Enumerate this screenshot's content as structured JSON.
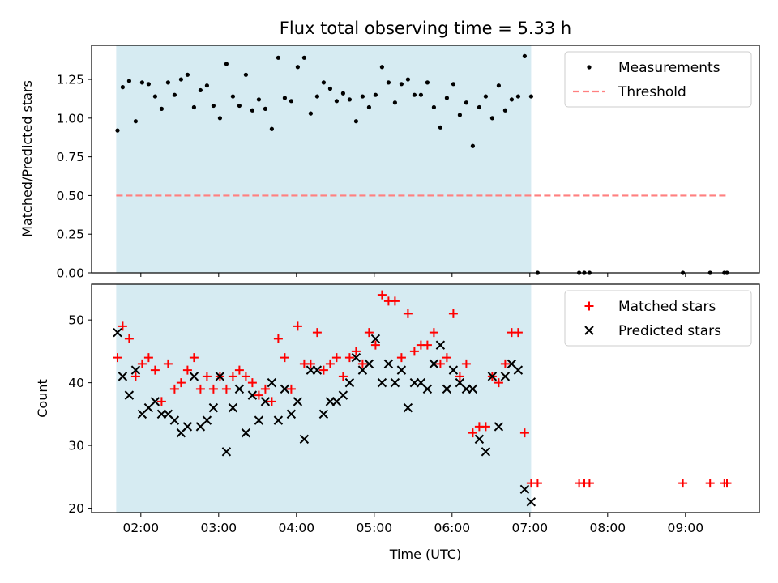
{
  "title": "Flux total observing time = 5.33 h",
  "xlabel": "Time (UTC)",
  "colors": {
    "shade": "#add8e6",
    "measurements": "#000000",
    "threshold": "#ff8080",
    "matched": "#ff0000",
    "predicted": "#000000"
  },
  "chart_data": [
    {
      "type": "scatter",
      "ylabel": "Matched/Predicted stars",
      "xlim": [
        "01:22",
        "09:57"
      ],
      "ylim": [
        0,
        1.47
      ],
      "yticks": [
        "0.00",
        "0.25",
        "0.50",
        "0.75",
        "1.00",
        "1.25"
      ],
      "shaded_span": [
        "01:41",
        "07:01"
      ],
      "legend": [
        "Measurements",
        "Threshold"
      ],
      "legend_position": "top-right",
      "threshold": {
        "name": "Threshold",
        "y": 0.5,
        "x": [
          "01:41",
          "09:32"
        ]
      },
      "series": [
        {
          "name": "Measurements",
          "marker": "dot",
          "points": [
            [
              "01:42",
              0.92
            ],
            [
              "01:46",
              1.2
            ],
            [
              "01:51",
              1.24
            ],
            [
              "01:56",
              0.98
            ],
            [
              "02:01",
              1.23
            ],
            [
              "02:06",
              1.22
            ],
            [
              "02:11",
              1.14
            ],
            [
              "02:16",
              1.06
            ],
            [
              "02:21",
              1.23
            ],
            [
              "02:26",
              1.15
            ],
            [
              "02:31",
              1.25
            ],
            [
              "02:36",
              1.28
            ],
            [
              "02:41",
              1.07
            ],
            [
              "02:46",
              1.18
            ],
            [
              "02:51",
              1.21
            ],
            [
              "02:56",
              1.08
            ],
            [
              "03:01",
              1.0
            ],
            [
              "03:06",
              1.35
            ],
            [
              "03:11",
              1.14
            ],
            [
              "03:16",
              1.08
            ],
            [
              "03:21",
              1.28
            ],
            [
              "03:26",
              1.05
            ],
            [
              "03:31",
              1.12
            ],
            [
              "03:36",
              1.06
            ],
            [
              "03:41",
              0.93
            ],
            [
              "03:46",
              1.39
            ],
            [
              "03:51",
              1.13
            ],
            [
              "03:56",
              1.11
            ],
            [
              "04:01",
              1.33
            ],
            [
              "04:06",
              1.39
            ],
            [
              "04:11",
              1.03
            ],
            [
              "04:16",
              1.14
            ],
            [
              "04:21",
              1.23
            ],
            [
              "04:26",
              1.19
            ],
            [
              "04:31",
              1.11
            ],
            [
              "04:36",
              1.16
            ],
            [
              "04:41",
              1.12
            ],
            [
              "04:46",
              0.98
            ],
            [
              "04:51",
              1.14
            ],
            [
              "04:56",
              1.07
            ],
            [
              "05:01",
              1.15
            ],
            [
              "05:06",
              1.33
            ],
            [
              "05:11",
              1.23
            ],
            [
              "05:16",
              1.1
            ],
            [
              "05:21",
              1.22
            ],
            [
              "05:26",
              1.25
            ],
            [
              "05:31",
              1.15
            ],
            [
              "05:36",
              1.15
            ],
            [
              "05:41",
              1.23
            ],
            [
              "05:46",
              1.07
            ],
            [
              "05:51",
              0.94
            ],
            [
              "05:56",
              1.13
            ],
            [
              "06:01",
              1.22
            ],
            [
              "06:06",
              1.02
            ],
            [
              "06:11",
              1.1
            ],
            [
              "06:16",
              0.82
            ],
            [
              "06:21",
              1.07
            ],
            [
              "06:26",
              1.14
            ],
            [
              "06:31",
              1.0
            ],
            [
              "06:36",
              1.21
            ],
            [
              "06:41",
              1.05
            ],
            [
              "06:46",
              1.12
            ],
            [
              "06:51",
              1.14
            ],
            [
              "06:56",
              1.4
            ],
            [
              "07:01",
              1.14
            ],
            [
              "07:06",
              0.0
            ],
            [
              "07:38",
              0.0
            ],
            [
              "07:42",
              0.0
            ],
            [
              "07:46",
              0.0
            ],
            [
              "08:58",
              0.0
            ],
            [
              "09:19",
              0.0
            ],
            [
              "09:30",
              0.0
            ],
            [
              "09:32",
              0.0
            ]
          ]
        }
      ]
    },
    {
      "type": "scatter",
      "ylabel": "Count",
      "xticks": [
        "02:00",
        "03:00",
        "04:00",
        "05:00",
        "06:00",
        "07:00",
        "08:00",
        "09:00"
      ],
      "xlim": [
        "01:22",
        "09:57"
      ],
      "ylim": [
        19.3,
        55.7
      ],
      "yticks": [
        "20",
        "30",
        "40",
        "50"
      ],
      "shaded_span": [
        "01:41",
        "07:01"
      ],
      "legend": [
        "Matched stars",
        "Predicted stars"
      ],
      "legend_position": "top-right",
      "series": [
        {
          "name": "Matched stars",
          "marker": "plus",
          "points": [
            [
              "01:42",
              44
            ],
            [
              "01:46",
              49
            ],
            [
              "01:51",
              47
            ],
            [
              "01:56",
              41
            ],
            [
              "02:01",
              43
            ],
            [
              "02:06",
              44
            ],
            [
              "02:11",
              42
            ],
            [
              "02:16",
              37
            ],
            [
              "02:21",
              43
            ],
            [
              "02:26",
              39
            ],
            [
              "02:31",
              40
            ],
            [
              "02:36",
              42
            ],
            [
              "02:41",
              44
            ],
            [
              "02:46",
              39
            ],
            [
              "02:51",
              41
            ],
            [
              "02:56",
              39
            ],
            [
              "03:01",
              41
            ],
            [
              "03:06",
              39
            ],
            [
              "03:11",
              41
            ],
            [
              "03:16",
              42
            ],
            [
              "03:21",
              41
            ],
            [
              "03:26",
              40
            ],
            [
              "03:31",
              38
            ],
            [
              "03:36",
              39
            ],
            [
              "03:41",
              37
            ],
            [
              "03:46",
              47
            ],
            [
              "03:51",
              44
            ],
            [
              "03:56",
              39
            ],
            [
              "04:01",
              49
            ],
            [
              "04:06",
              43
            ],
            [
              "04:11",
              43
            ],
            [
              "04:16",
              48
            ],
            [
              "04:21",
              42
            ],
            [
              "04:26",
              43
            ],
            [
              "04:31",
              44
            ],
            [
              "04:36",
              41
            ],
            [
              "04:41",
              44
            ],
            [
              "04:46",
              45
            ],
            [
              "04:51",
              43
            ],
            [
              "04:56",
              48
            ],
            [
              "05:01",
              46
            ],
            [
              "05:06",
              54
            ],
            [
              "05:11",
              53
            ],
            [
              "05:16",
              53
            ],
            [
              "05:21",
              44
            ],
            [
              "05:26",
              51
            ],
            [
              "05:31",
              45
            ],
            [
              "05:36",
              46
            ],
            [
              "05:41",
              46
            ],
            [
              "05:46",
              48
            ],
            [
              "05:51",
              43
            ],
            [
              "05:56",
              44
            ],
            [
              "06:01",
              51
            ],
            [
              "06:06",
              41
            ],
            [
              "06:11",
              43
            ],
            [
              "06:16",
              32
            ],
            [
              "06:21",
              33
            ],
            [
              "06:26",
              33
            ],
            [
              "06:31",
              41
            ],
            [
              "06:36",
              40
            ],
            [
              "06:41",
              43
            ],
            [
              "06:46",
              48
            ],
            [
              "06:51",
              48
            ],
            [
              "06:56",
              32
            ],
            [
              "07:01",
              24
            ],
            [
              "07:06",
              24
            ],
            [
              "07:38",
              24
            ],
            [
              "07:42",
              24
            ],
            [
              "07:46",
              24
            ],
            [
              "08:58",
              24
            ],
            [
              "09:19",
              24
            ],
            [
              "09:30",
              24
            ],
            [
              "09:32",
              24
            ]
          ]
        },
        {
          "name": "Predicted stars",
          "marker": "x",
          "points": [
            [
              "01:42",
              48
            ],
            [
              "01:46",
              41
            ],
            [
              "01:51",
              38
            ],
            [
              "01:56",
              42
            ],
            [
              "02:01",
              35
            ],
            [
              "02:06",
              36
            ],
            [
              "02:11",
              37
            ],
            [
              "02:16",
              35
            ],
            [
              "02:21",
              35
            ],
            [
              "02:26",
              34
            ],
            [
              "02:31",
              32
            ],
            [
              "02:36",
              33
            ],
            [
              "02:41",
              41
            ],
            [
              "02:46",
              33
            ],
            [
              "02:51",
              34
            ],
            [
              "02:56",
              36
            ],
            [
              "03:01",
              41
            ],
            [
              "03:06",
              29
            ],
            [
              "03:11",
              36
            ],
            [
              "03:16",
              39
            ],
            [
              "03:21",
              32
            ],
            [
              "03:26",
              38
            ],
            [
              "03:31",
              34
            ],
            [
              "03:36",
              37
            ],
            [
              "03:41",
              40
            ],
            [
              "03:46",
              34
            ],
            [
              "03:51",
              39
            ],
            [
              "03:56",
              35
            ],
            [
              "04:01",
              37
            ],
            [
              "04:06",
              31
            ],
            [
              "04:11",
              42
            ],
            [
              "04:16",
              42
            ],
            [
              "04:21",
              35
            ],
            [
              "04:26",
              37
            ],
            [
              "04:31",
              37
            ],
            [
              "04:36",
              38
            ],
            [
              "04:41",
              40
            ],
            [
              "04:46",
              44
            ],
            [
              "04:51",
              42
            ],
            [
              "04:56",
              43
            ],
            [
              "05:01",
              47
            ],
            [
              "05:06",
              40
            ],
            [
              "05:11",
              43
            ],
            [
              "05:16",
              40
            ],
            [
              "05:21",
              42
            ],
            [
              "05:26",
              36
            ],
            [
              "05:31",
              40
            ],
            [
              "05:36",
              40
            ],
            [
              "05:41",
              39
            ],
            [
              "05:46",
              43
            ],
            [
              "05:51",
              46
            ],
            [
              "05:56",
              39
            ],
            [
              "06:01",
              42
            ],
            [
              "06:06",
              40
            ],
            [
              "06:11",
              39
            ],
            [
              "06:16",
              39
            ],
            [
              "06:21",
              31
            ],
            [
              "06:26",
              29
            ],
            [
              "06:31",
              41
            ],
            [
              "06:36",
              33
            ],
            [
              "06:41",
              41
            ],
            [
              "06:46",
              43
            ],
            [
              "06:51",
              42
            ],
            [
              "06:56",
              23
            ],
            [
              "07:01",
              21
            ]
          ]
        }
      ]
    }
  ]
}
